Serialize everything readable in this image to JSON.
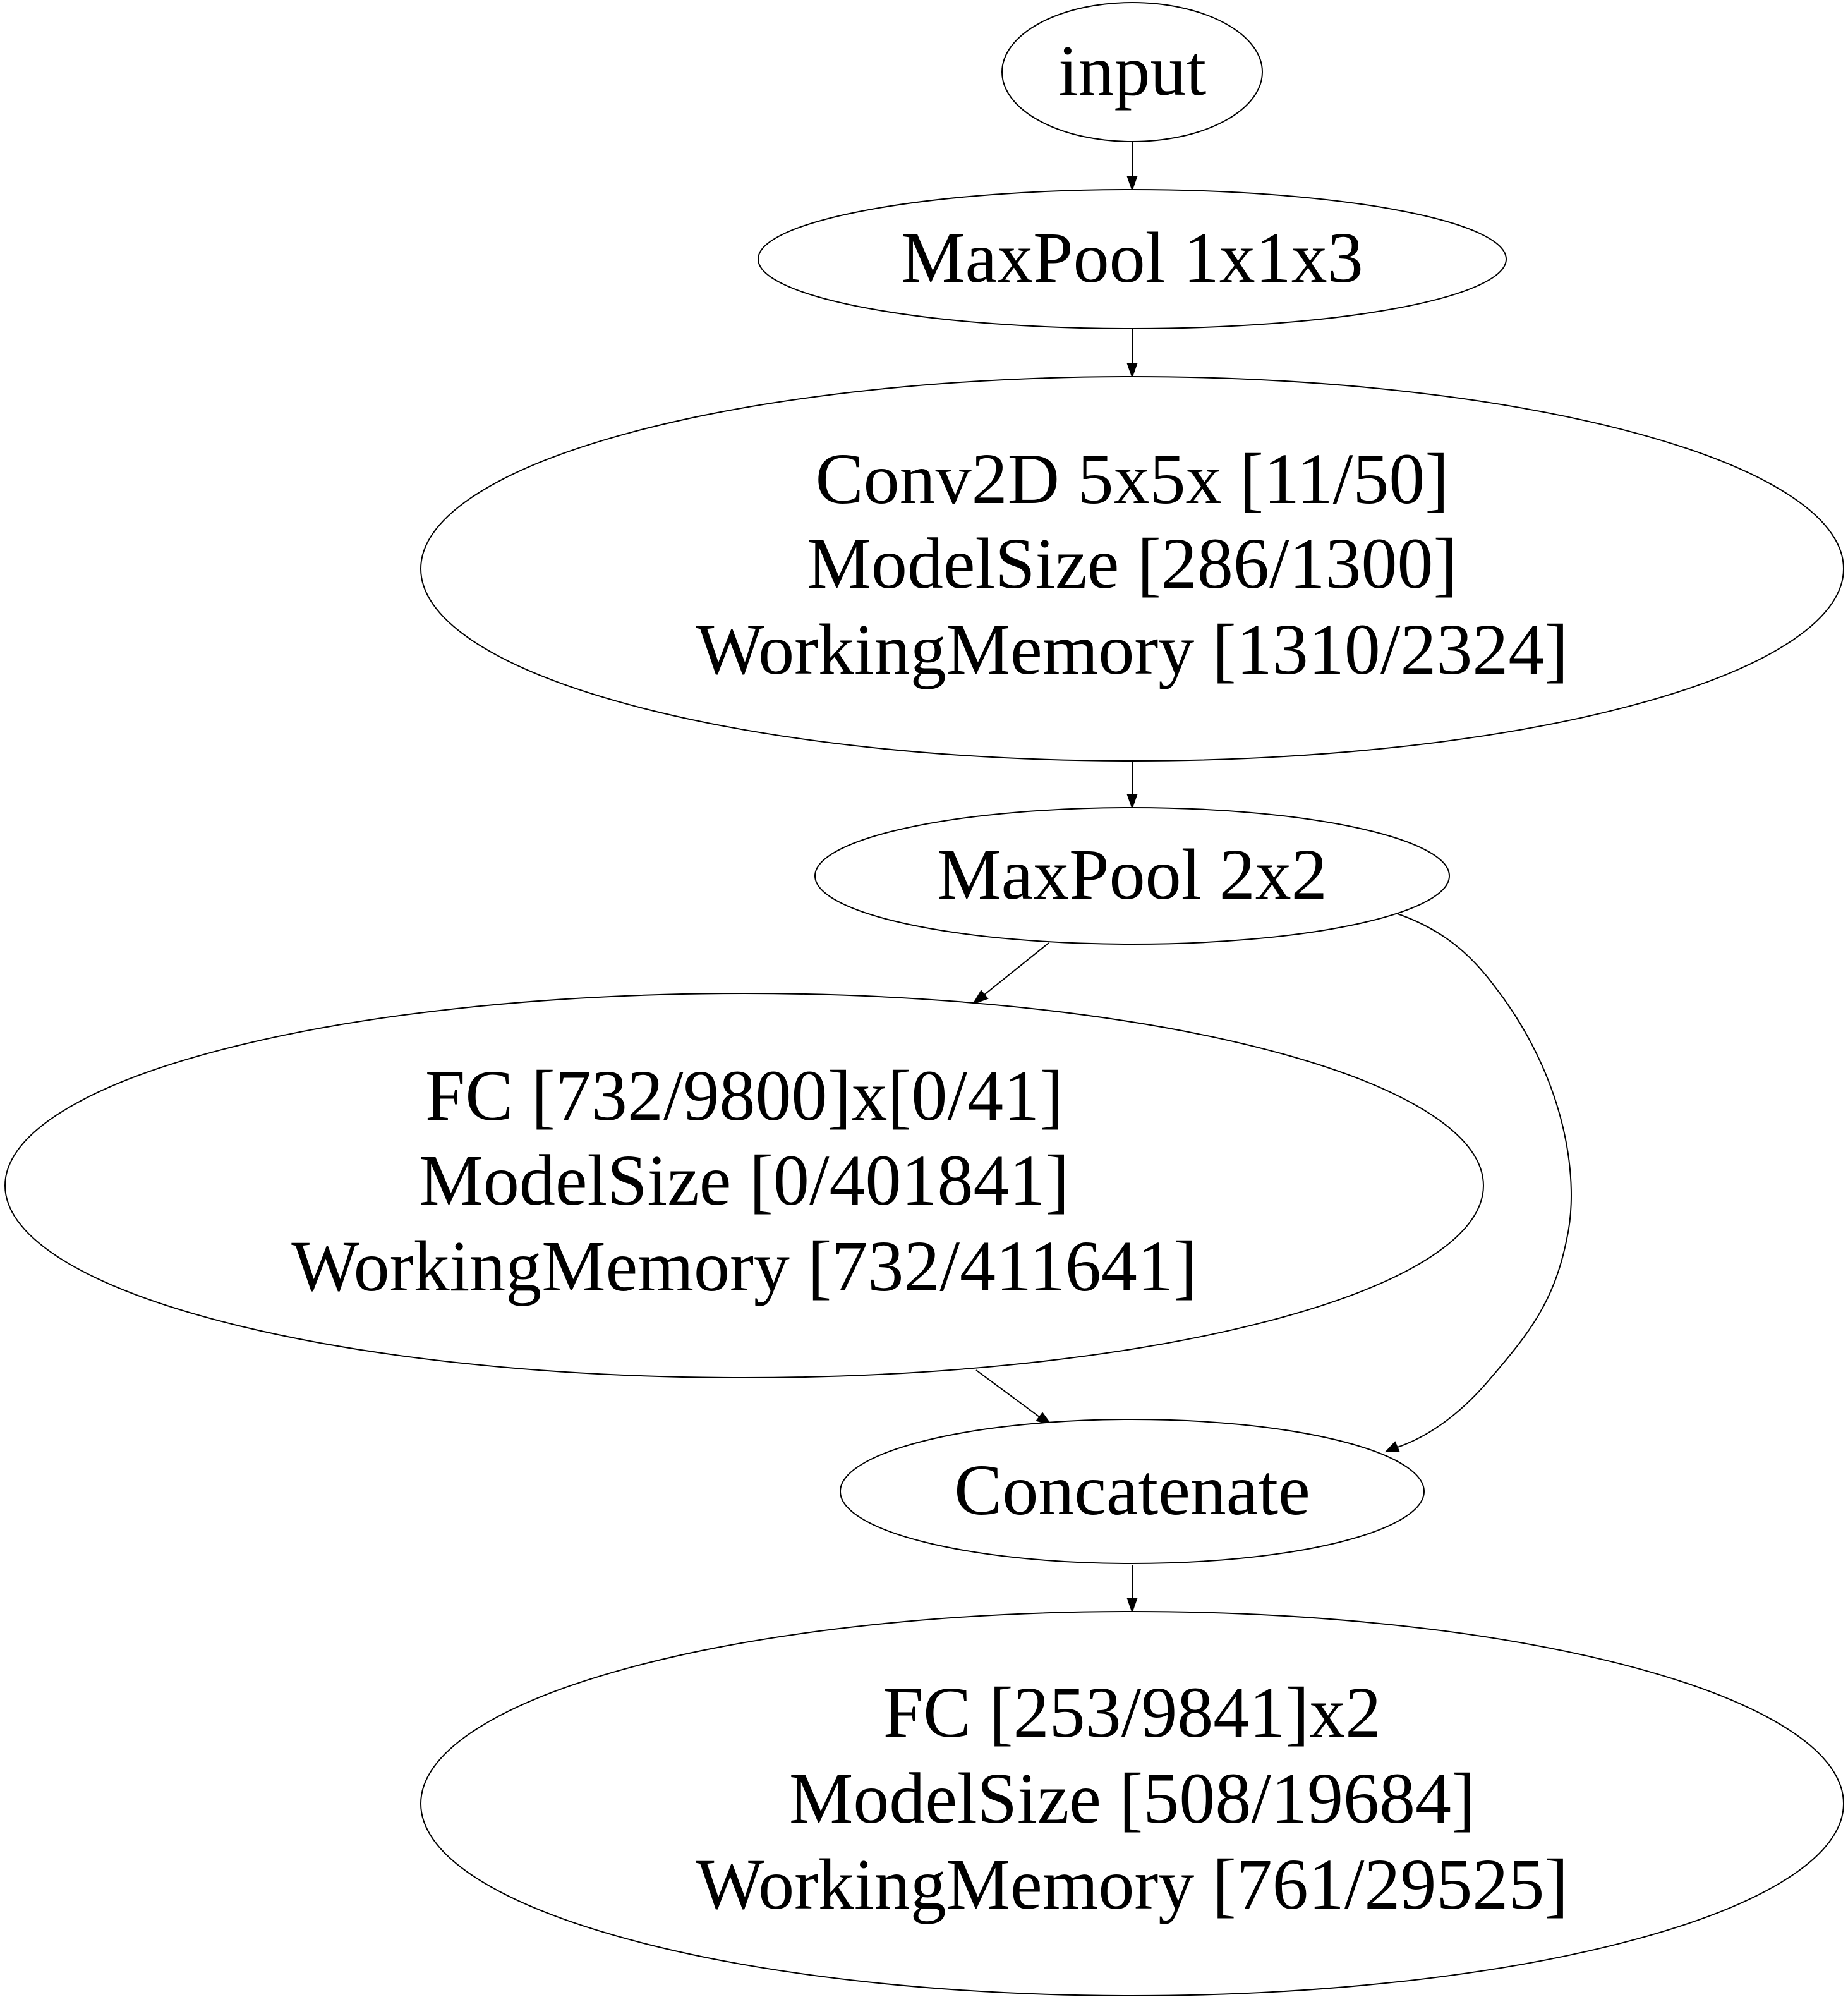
{
  "diagram": {
    "type": "directed-graph",
    "nodes": [
      {
        "id": "input",
        "lines": [
          "input"
        ]
      },
      {
        "id": "maxpool1",
        "lines": [
          "MaxPool 1x1x3"
        ]
      },
      {
        "id": "conv2d",
        "lines": [
          "Conv2D 5x5x [11/50]",
          "ModelSize [286/1300]",
          "WorkingMemory [1310/2324]"
        ]
      },
      {
        "id": "maxpool2",
        "lines": [
          "MaxPool 2x2"
        ]
      },
      {
        "id": "fc1",
        "lines": [
          "FC [732/9800]x[0/41]",
          "ModelSize [0/401841]",
          "WorkingMemory [732/411641]"
        ]
      },
      {
        "id": "concat",
        "lines": [
          "Concatenate"
        ]
      },
      {
        "id": "fc2",
        "lines": [
          "FC [253/9841]x2",
          "ModelSize [508/19684]",
          "WorkingMemory [761/29525]"
        ]
      }
    ],
    "edges": [
      {
        "from": "input",
        "to": "maxpool1"
      },
      {
        "from": "maxpool1",
        "to": "conv2d"
      },
      {
        "from": "conv2d",
        "to": "maxpool2"
      },
      {
        "from": "maxpool2",
        "to": "fc1"
      },
      {
        "from": "maxpool2",
        "to": "concat"
      },
      {
        "from": "fc1",
        "to": "concat"
      },
      {
        "from": "concat",
        "to": "fc2"
      }
    ]
  }
}
